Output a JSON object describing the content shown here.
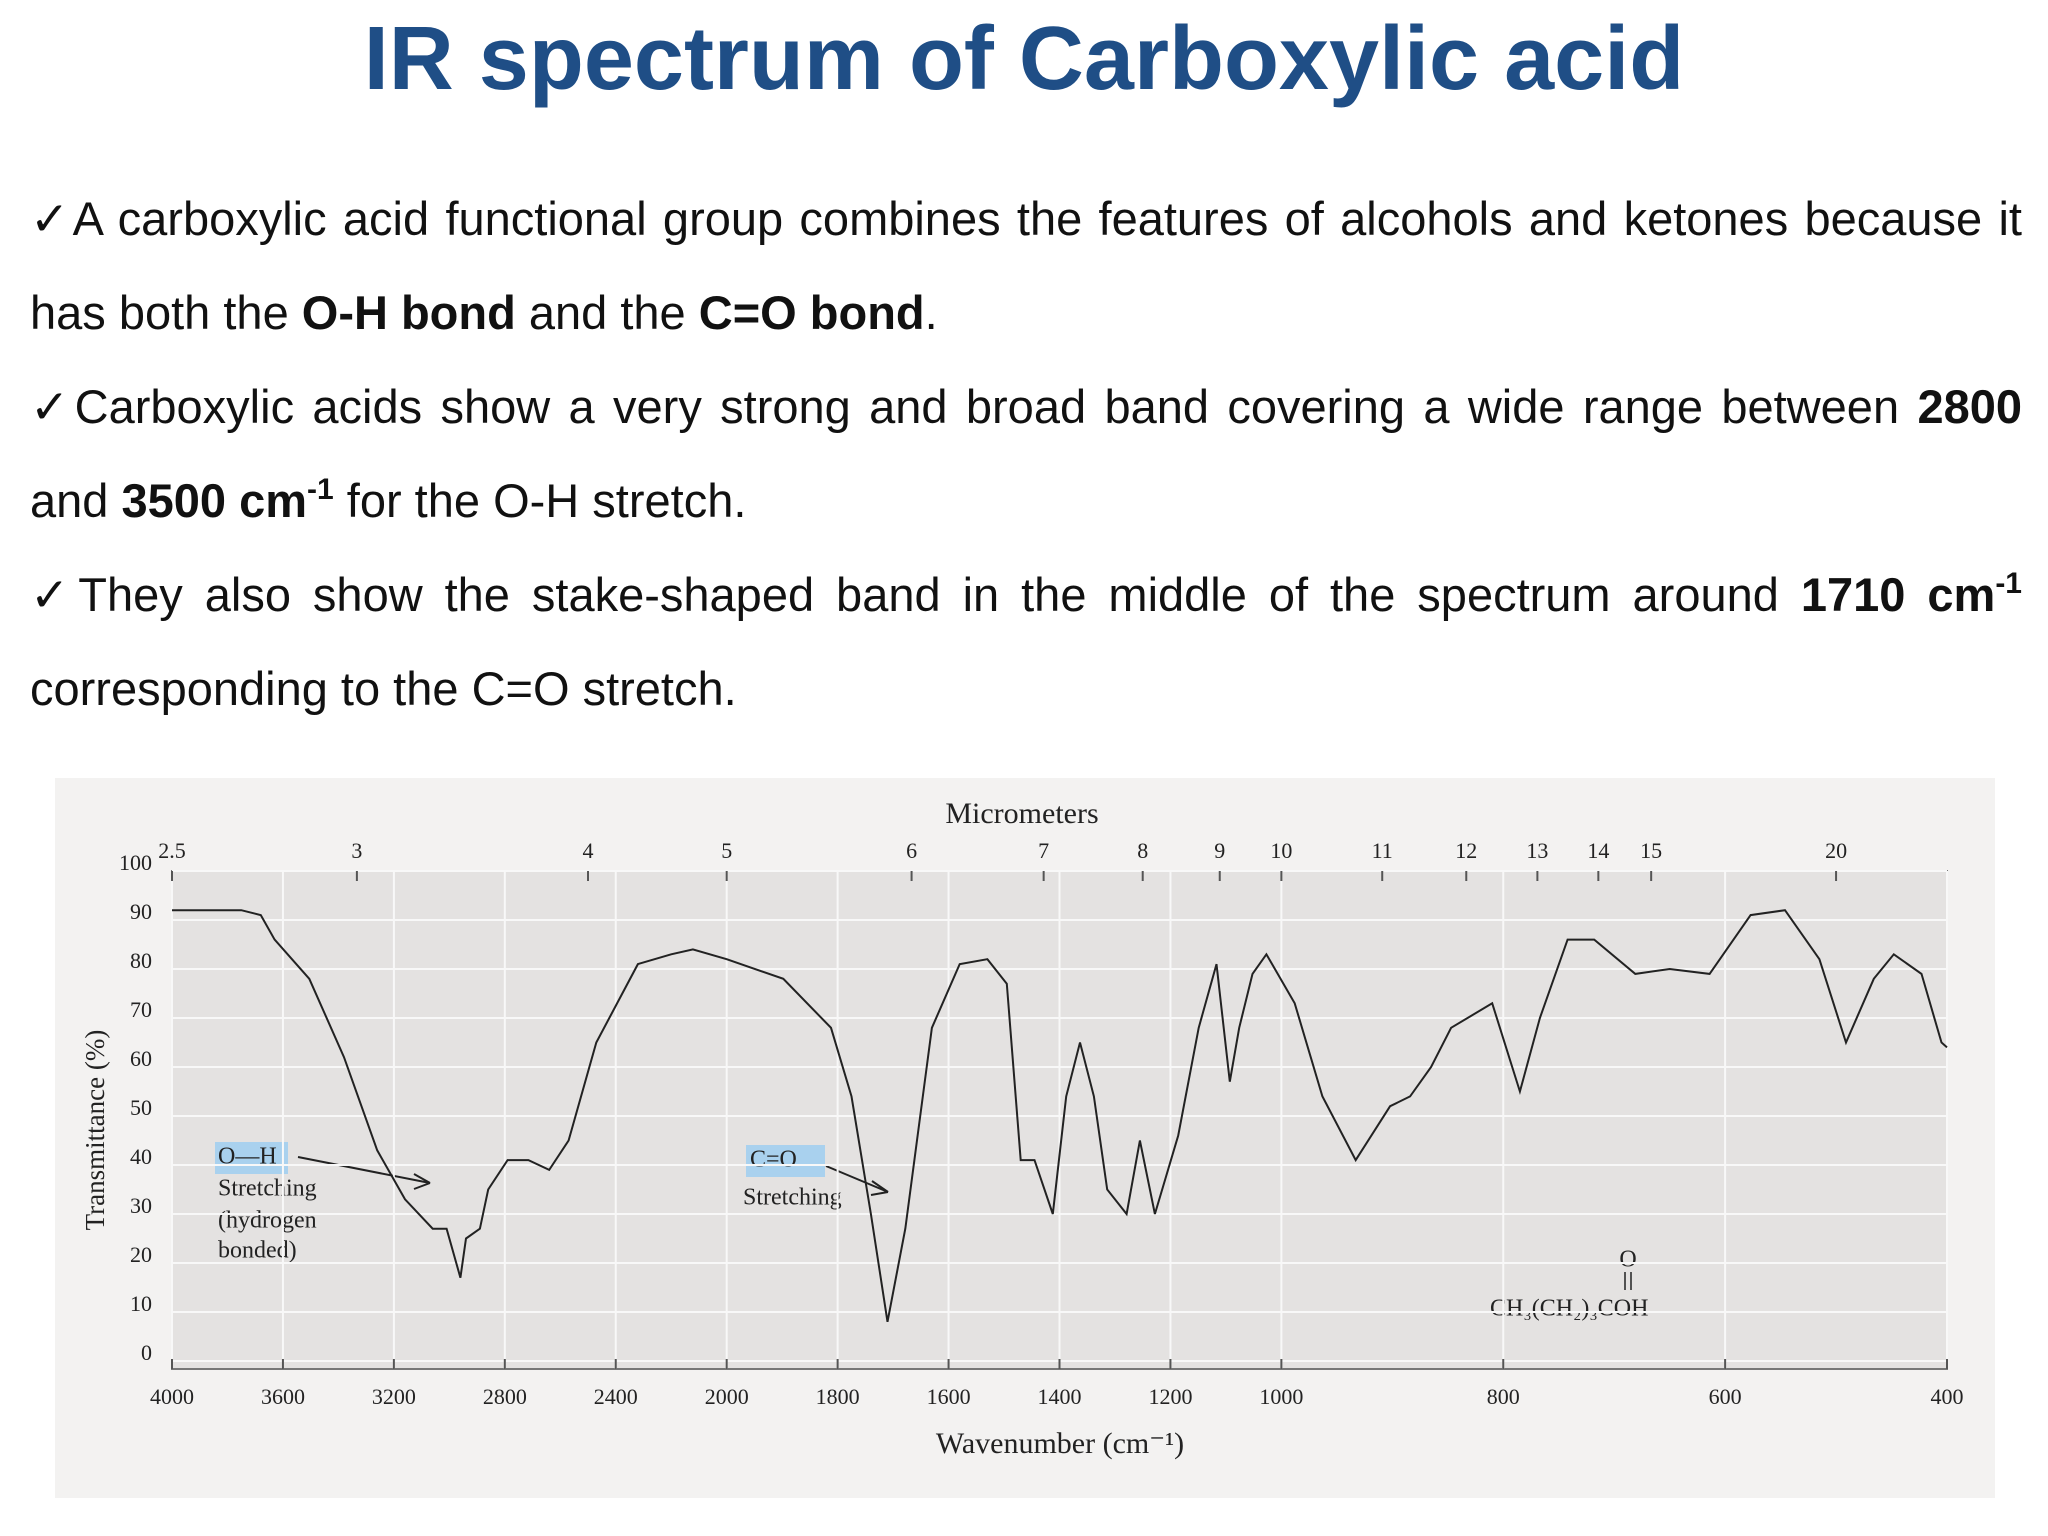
{
  "title": "IR spectrum of Carboxylic acid",
  "paragraphs": [
    [
      {
        "text": "✓A carboxylic acid functional group combines the features of alcohols and ketones because it has both the "
      },
      {
        "text": "O-H bond",
        "bold": true
      },
      {
        "text": " and the "
      },
      {
        "text": "C=O bond",
        "bold": true
      },
      {
        "text": "."
      }
    ],
    [
      {
        "text": "✓Carboxylic acids show a very strong and broad band covering a wide range between "
      },
      {
        "text": "2800",
        "bold": true
      },
      {
        "text": " and "
      },
      {
        "text": "3500 cm",
        "bold": true
      },
      {
        "text": "-1",
        "bold": true,
        "sup": true
      },
      {
        "text": " for the O-H stretch."
      }
    ],
    [
      {
        "text": "✓They also show the stake-shaped band in the middle of the spectrum around "
      },
      {
        "text": "1710 cm",
        "bold": true
      },
      {
        "text": "-1",
        "bold": true,
        "sup": true
      },
      {
        "text": " corresponding to the C=O stretch."
      }
    ]
  ],
  "chart_data": {
    "type": "line",
    "x2_label": "Micrometers",
    "y_label": "Transmittance (%)",
    "x_label": "Wavenumber (cm⁻¹)",
    "annotations": [
      "O—H",
      "Stretching",
      "(hydrogen",
      "bonded)",
      "C=O",
      "Stretching"
    ],
    "formula": "CH₃(CH₂)₃COH",
    "formula_top": "O",
    "color": "#222222",
    "xlim": [
      4000,
      400
    ],
    "x_scale_breaks": [
      2000,
      1000
    ],
    "xticks": [
      4000,
      3600,
      3200,
      2800,
      2400,
      2000,
      1800,
      1600,
      1400,
      1200,
      1000,
      800,
      600,
      400
    ],
    "x2ticks": [
      2.5,
      3,
      4,
      5,
      6,
      7,
      8,
      9,
      10,
      11,
      12,
      13,
      14,
      15,
      20
    ],
    "ylim": [
      0,
      100
    ],
    "yticks": [
      0,
      10,
      20,
      30,
      40,
      50,
      60,
      70,
      80,
      90,
      100
    ],
    "grid": true,
    "x": [
      4000,
      3750,
      3680,
      3630,
      3505,
      3380,
      3260,
      3160,
      3060,
      3010,
      2960,
      2940,
      2890,
      2860,
      2790,
      2715,
      2640,
      2570,
      2470,
      2320,
      2200,
      2122,
      2000,
      1898,
      1812,
      1775,
      1740,
      1710,
      1678,
      1630,
      1580,
      1530,
      1495,
      1470,
      1445,
      1412,
      1388,
      1363,
      1338,
      1314,
      1279,
      1255,
      1228,
      1186,
      1149,
      1117,
      1093,
      1076,
      1052,
      1027,
      988,
      963,
      933,
      902,
      884,
      865,
      847,
      810,
      785,
      767,
      742,
      718,
      681,
      650,
      614,
      577,
      546,
      515,
      491,
      466,
      448,
      423,
      405,
      400
    ],
    "values": [
      92,
      92,
      91,
      86,
      78,
      62,
      43,
      33,
      27,
      27,
      17,
      25,
      27,
      35,
      41,
      41,
      39,
      45,
      65,
      81,
      83,
      84,
      82,
      78,
      68,
      54,
      30,
      8,
      27,
      68,
      81,
      82,
      77,
      41,
      41,
      30,
      54,
      65,
      54,
      35,
      30,
      45,
      30,
      46,
      68,
      81,
      57,
      68,
      79,
      83,
      73,
      54,
      41,
      52,
      54,
      60,
      68,
      73,
      55,
      70,
      86,
      86,
      79,
      80,
      79,
      91,
      92,
      82,
      65,
      78,
      83,
      79,
      65,
      64
    ]
  }
}
